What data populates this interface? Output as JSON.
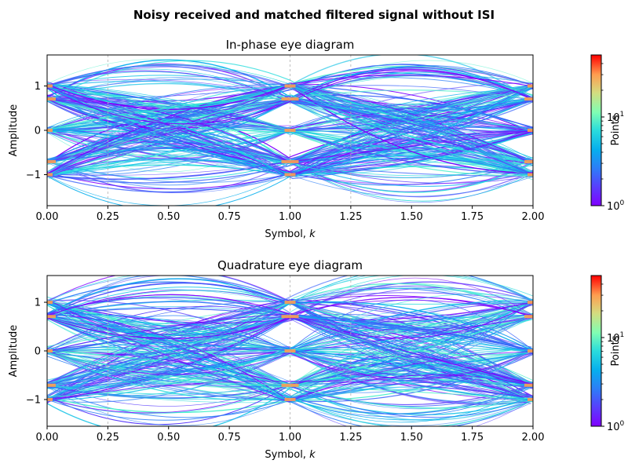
{
  "suptitle": "Noisy received and matched filtered signal without ISI",
  "chart_data": [
    {
      "type": "heatmap",
      "title": "In-phase eye diagram",
      "xlabel": "Symbol, k",
      "xlabel_text": "Symbol, ",
      "xlabel_var": "k",
      "ylabel": "Amplitude",
      "xlim": [
        0,
        2
      ],
      "ylim": [
        -1.7,
        1.7
      ],
      "xticks": [
        0,
        0.25,
        0.5,
        0.75,
        1,
        1.25,
        1.5,
        1.75,
        2
      ],
      "xtick_labels": [
        "0.00",
        "0.25",
        "0.50",
        "0.75",
        "1.00",
        "1.25",
        "1.50",
        "1.75",
        "2.00"
      ],
      "yticks": [
        -1,
        0,
        1
      ],
      "ytick_labels": [
        "−1",
        "0",
        "1"
      ],
      "grid_x": [
        0.25,
        1.0,
        1.25
      ],
      "symbol_levels": [
        -1,
        -0.7071,
        0,
        0.7071,
        1
      ],
      "colorbar": {
        "label": "Points",
        "scale": "log",
        "range": [
          1,
          50
        ],
        "ticks": [
          {
            "value": 1,
            "base": "10",
            "exp": "0"
          },
          {
            "value": 10,
            "base": "10",
            "exp": "1"
          }
        ],
        "colormap": "rainbow"
      }
    },
    {
      "type": "heatmap",
      "title": "Quadrature eye diagram",
      "xlabel": "Symbol, k",
      "xlabel_text": "Symbol, ",
      "xlabel_var": "k",
      "ylabel": "Amplitude",
      "xlim": [
        0,
        2
      ],
      "ylim": [
        -1.55,
        1.55
      ],
      "xticks": [
        0,
        0.25,
        0.5,
        0.75,
        1,
        1.25,
        1.5,
        1.75,
        2
      ],
      "xtick_labels": [
        "0.00",
        "0.25",
        "0.50",
        "0.75",
        "1.00",
        "1.25",
        "1.50",
        "1.75",
        "2.00"
      ],
      "yticks": [
        -1,
        0,
        1
      ],
      "ytick_labels": [
        "−1",
        "0",
        "1"
      ],
      "grid_x": [
        0.25,
        1.0,
        1.25
      ],
      "symbol_levels": [
        -1,
        -0.7071,
        0,
        0.7071,
        1
      ],
      "colorbar": {
        "label": "Points",
        "scale": "log",
        "range": [
          1,
          50
        ],
        "ticks": [
          {
            "value": 1,
            "base": "10",
            "exp": "0"
          },
          {
            "value": 10,
            "base": "10",
            "exp": "1"
          }
        ],
        "colormap": "rainbow"
      }
    }
  ]
}
